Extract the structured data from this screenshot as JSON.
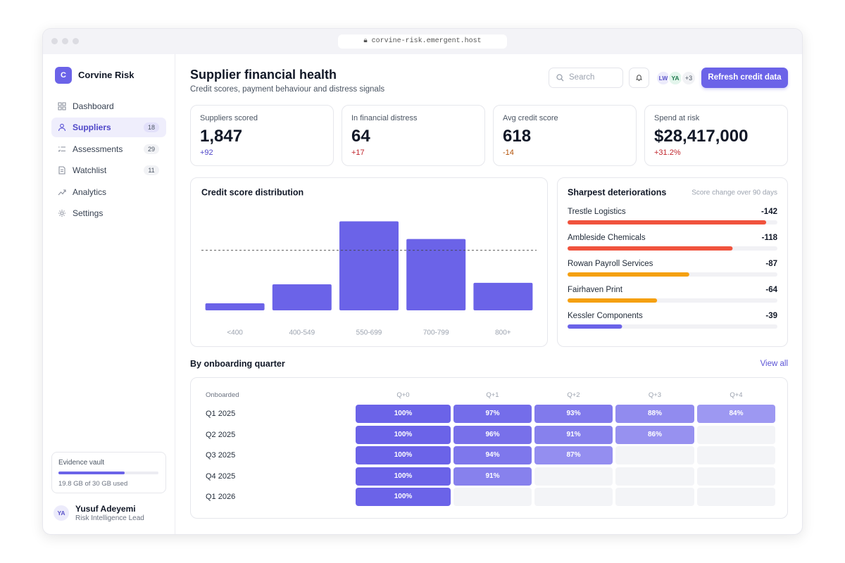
{
  "browser": {
    "url": "corvine-risk.emergent.host"
  },
  "sidebar": {
    "logo": "C",
    "brand": "Corvine Risk",
    "nav": [
      {
        "label": "Dashboard"
      },
      {
        "label": "Suppliers",
        "count": 18,
        "active": true
      },
      {
        "label": "Assessments",
        "count": 29
      },
      {
        "label": "Watchlist",
        "count": 11
      },
      {
        "label": "Analytics"
      },
      {
        "label": "Settings"
      }
    ],
    "storage": {
      "label": "Evidence vault",
      "used": 19.8,
      "total": 30,
      "caption": "19.8 GB of 30 GB used"
    },
    "user": {
      "initials": "YA",
      "name": "Yusuf Adeyemi",
      "role": "Risk Intelligence Lead"
    }
  },
  "header": {
    "title": "Supplier financial health",
    "subtitle": "Credit scores, payment behaviour and distress signals",
    "search": "Search",
    "avatars": [
      "LW",
      "YA"
    ],
    "more": "+3",
    "action": "Refresh credit data"
  },
  "kpis": [
    {
      "label": "Suppliers scored",
      "value": "1,847",
      "delta": "+92",
      "delta_color": "#4f46c8"
    },
    {
      "label": "In financial distress",
      "value": "64",
      "delta": "+17",
      "delta_color": "#c0262d"
    },
    {
      "label": "Avg credit score",
      "value": "618",
      "delta": "-14",
      "delta_color": "#b45309"
    },
    {
      "label": "Spend at risk",
      "value": "$28,417,000",
      "delta": "+31.2%",
      "delta_color": "#c0262d"
    }
  ],
  "chart_data": [
    {
      "type": "bar",
      "title": "Credit score distribution",
      "categories": [
        "<400",
        "400-549",
        "550-699",
        "700-799",
        "800+"
      ],
      "values": [
        59,
        218,
        744,
        596,
        230
      ],
      "color": "#6b63e8",
      "ylim": [
        0,
        900
      ],
      "reference_line": 502
    },
    {
      "type": "hbar",
      "title": "Sharpest deteriorations",
      "subtitle": "Score change over 90 days",
      "categories": [
        "Trestle Logistics",
        "Ambleside Chemicals",
        "Rowan Payroll Services",
        "Fairhaven Print",
        "Kessler Components"
      ],
      "values": [
        -142,
        -118,
        -87,
        -64,
        -39
      ],
      "colors": [
        "#f0533d",
        "#f0533d",
        "#f5a00f",
        "#f5a00f",
        "#6b63e8"
      ],
      "xlim": [
        0,
        -150
      ]
    }
  ],
  "cohort": {
    "title": "By onboarding quarter",
    "link": "View all",
    "row_header": "Onboarded",
    "columns": [
      "Q+0",
      "Q+1",
      "Q+2",
      "Q+3",
      "Q+4"
    ],
    "rows": [
      "Q1 2025",
      "Q2 2025",
      "Q3 2025",
      "Q4 2025",
      "Q1 2026"
    ],
    "values": [
      [
        100,
        97,
        93,
        88,
        84
      ],
      [
        100,
        96,
        91,
        86
      ],
      [
        100,
        94,
        87
      ],
      [
        100,
        91
      ],
      [
        100
      ]
    ],
    "value_labels": [
      [
        "100%",
        "97%",
        "93%",
        "88%",
        "84%"
      ],
      [
        "100%",
        "96%",
        "91%",
        "86%"
      ],
      [
        "100%",
        "94%",
        "87%"
      ],
      [
        "100%",
        "91%"
      ],
      [
        "100%"
      ]
    ],
    "color_scale": {
      "domain": [
        80,
        100
      ],
      "colors": [
        "#aaa5f4",
        "#6b63e8"
      ]
    }
  }
}
